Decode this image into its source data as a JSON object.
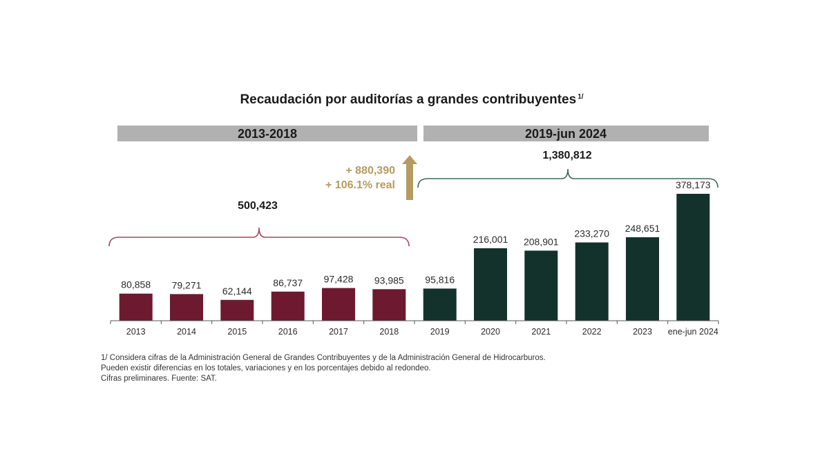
{
  "chart_data": {
    "type": "bar",
    "title": "Recaudación por auditorías a grandes contribuyentes",
    "title_superscript": "1/",
    "xlabel": "",
    "ylabel": "",
    "categories": [
      "2013",
      "2014",
      "2015",
      "2016",
      "2017",
      "2018",
      "2019",
      "2020",
      "2021",
      "2022",
      "2023",
      "ene-jun 2024"
    ],
    "value_labels": [
      "80,858",
      "79,271",
      "62,144",
      "86,737",
      "97,428",
      "93,985",
      "95,816",
      "216,001",
      "208,901",
      "233,270",
      "248,651",
      "378,173"
    ],
    "series": [
      {
        "values": [
          80858,
          79271,
          62144,
          86737,
          97428,
          93985,
          95816,
          216001,
          208901,
          233270,
          248651,
          378173
        ]
      }
    ],
    "ylim": [
      0,
      378173
    ],
    "grid": false,
    "periods": [
      {
        "label": "2013-2018",
        "total": "500,423",
        "first_index": 0,
        "last_index": 5,
        "color": "#6d1a31",
        "bracket_color": "#a3465e"
      },
      {
        "label": "2019-jun 2024",
        "total": "1,380,812",
        "first_index": 6,
        "last_index": 11,
        "color": "#13322b",
        "bracket_color": "#3c6a58"
      }
    ],
    "annotation": {
      "line1": "+ 880,390",
      "line2": "+ 106.1% real",
      "color": "#b59b62"
    },
    "header_bar_color": "#b1b1b1"
  },
  "footnotes": [
    "1/ Considera cifras de la Administración General de Grandes Contribuyentes y de la Administración General de Hidrocarburos.",
    "Pueden existir diferencias en los totales, variaciones y en los porcentajes debido al redondeo.",
    "Cifras preliminares. Fuente: SAT."
  ]
}
